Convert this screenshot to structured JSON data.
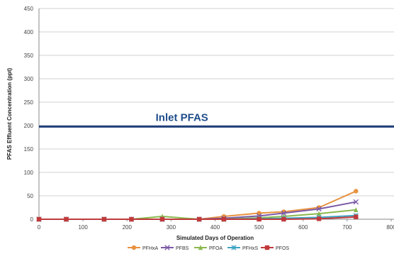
{
  "chart_data": {
    "type": "line",
    "title": "",
    "xlabel": "Simulated Days of Operation",
    "ylabel": "PFAS Effluent  Concentration  (ppt)",
    "xlim": [
      0,
      800
    ],
    "ylim": [
      0,
      450
    ],
    "x_ticks": [
      0,
      100,
      200,
      300,
      400,
      500,
      600,
      700,
      800
    ],
    "y_ticks": [
      0,
      50,
      100,
      150,
      200,
      250,
      300,
      350,
      400,
      450
    ],
    "grid": "horizontal",
    "legend_position": "bottom",
    "annotation": {
      "text": "Inlet PFAS",
      "x": 265,
      "y": 198
    },
    "reference_line": {
      "y": 198,
      "color": "#1f3f7a"
    },
    "series": [
      {
        "name": "PFHxA",
        "color": "#e8923f",
        "marker": "circle",
        "x": [
          0,
          62,
          148,
          210,
          280,
          364,
          420,
          500,
          556,
          636,
          720
        ],
        "y": [
          0,
          0,
          0,
          0,
          0,
          0,
          6,
          13,
          16,
          25,
          60
        ]
      },
      {
        "name": "PFBS",
        "color": "#7b5aa6",
        "marker": "x",
        "x": [
          0,
          62,
          148,
          210,
          280,
          364,
          420,
          500,
          556,
          636,
          720
        ],
        "y": [
          0,
          0,
          0,
          0,
          0,
          0,
          2,
          7,
          13,
          22,
          37
        ]
      },
      {
        "name": "PFOA",
        "color": "#8cb84f",
        "marker": "triangle",
        "x": [
          0,
          62,
          148,
          210,
          280,
          364,
          420,
          500,
          556,
          636,
          720
        ],
        "y": [
          0,
          0,
          0,
          0,
          6,
          0,
          0,
          3,
          6,
          12,
          20
        ]
      },
      {
        "name": "PFHxS",
        "color": "#3ea4c4",
        "marker": "star",
        "x": [
          0,
          62,
          148,
          210,
          280,
          364,
          420,
          500,
          556,
          636,
          720
        ],
        "y": [
          0,
          0,
          0,
          0,
          0,
          0,
          0,
          1,
          2,
          4,
          8
        ]
      },
      {
        "name": "PFOS",
        "color": "#c0393b",
        "marker": "square",
        "x": [
          0,
          62,
          148,
          210,
          280,
          364,
          420,
          500,
          556,
          636,
          720
        ],
        "y": [
          0,
          0,
          0,
          0,
          0,
          0,
          0,
          0,
          0,
          1,
          5
        ]
      }
    ]
  }
}
